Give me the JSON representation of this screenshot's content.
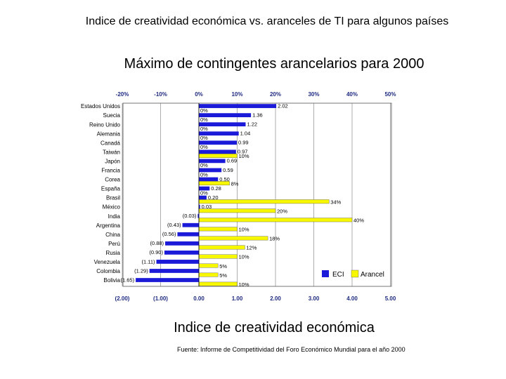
{
  "title": "Indice de creatividad económica  vs. aranceles de TI para algunos países",
  "subtitle": "Máximo de contingentes arancelarios para 2000",
  "source": "Fuente: Informe de Competitividad del Foro Económico Mundial para el año  2000",
  "colors": {
    "eci": "#1a1ad8",
    "arancel": "#f7f700"
  },
  "chart_data": {
    "type": "bar",
    "orientation": "horizontal",
    "categories": [
      "Estados Unidos",
      "Suecia",
      "Reino Unido",
      "Alemania",
      "Canadá",
      "Taiwán",
      "Japón",
      "Francia",
      "Corea",
      "España",
      "Brasil",
      "México",
      "India",
      "Argentina",
      "China",
      "Perú",
      "Rusia",
      "Venezuela",
      "Colombia",
      "Bolivia"
    ],
    "xlabel": "Indice de creatividad económica",
    "legend_position": "bottom-right",
    "bottom_axis": {
      "range": [
        -2,
        5
      ],
      "ticks": [
        "(2.00)",
        "(1.00)",
        "0.00",
        "1.00",
        "2.00",
        "3.00",
        "4.00",
        "5.00"
      ]
    },
    "top_axis": {
      "range": [
        -20,
        50
      ],
      "ticks": [
        "-20%",
        "-10%",
        "0%",
        "10%",
        "20%",
        "30%",
        "40%",
        "50%"
      ]
    },
    "series": [
      {
        "name": "ECI",
        "values": [
          2.02,
          1.36,
          1.22,
          1.04,
          0.99,
          0.97,
          0.69,
          0.59,
          0.5,
          0.28,
          0.2,
          0.03,
          -0.03,
          -0.43,
          -0.56,
          -0.88,
          -0.9,
          -1.11,
          -1.29,
          -1.65
        ],
        "labels": [
          "2.02",
          "1.36",
          "1.22",
          "1.04",
          "0.99",
          "0.97",
          "0.69",
          "0.59",
          "0.50",
          "0.28",
          "0.20",
          "0.03",
          "(0.03)",
          "(0.43)",
          "(0.56)",
          "(0.88)",
          "(0.90)",
          "(1.11)",
          "(1.29)",
          "(1.65)"
        ]
      },
      {
        "name": "Arancel",
        "values": [
          0,
          0,
          0,
          0,
          0,
          10,
          0,
          0,
          8,
          0,
          34,
          20,
          40,
          10,
          18,
          12,
          10,
          5,
          5,
          10
        ],
        "labels": [
          "0%",
          "0%",
          "0%",
          "0%",
          "0%",
          "10%",
          "0%",
          "0%",
          "8%",
          "0%",
          "34%",
          "20%",
          "40%",
          "10%",
          "18%",
          "12%",
          "10%",
          "5%",
          "5%",
          "10%"
        ]
      }
    ]
  }
}
